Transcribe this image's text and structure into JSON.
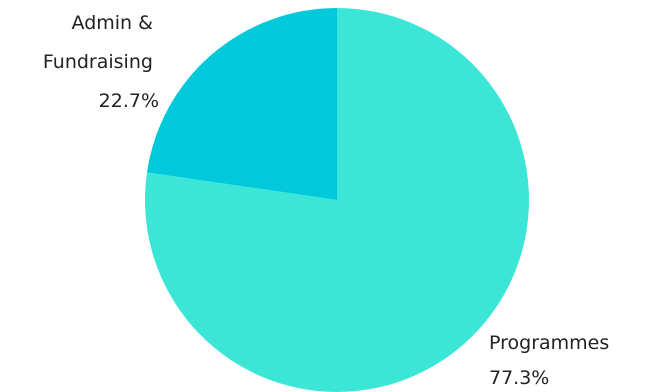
{
  "chart_data": {
    "type": "pie",
    "title": "",
    "slices": [
      {
        "name": "Programmes",
        "label_lines": [
          "Programmes",
          "77.3%"
        ],
        "value": 77.3,
        "color": "#3ce6d6"
      },
      {
        "name": "Admin & Fundraising",
        "label_lines": [
          "Admin &",
          "Fundraising",
          "22.7%"
        ],
        "value": 22.7,
        "color": "#00c9dc"
      }
    ],
    "start": "top",
    "direction": "clockwise",
    "legend": "none",
    "labels": "outside"
  }
}
